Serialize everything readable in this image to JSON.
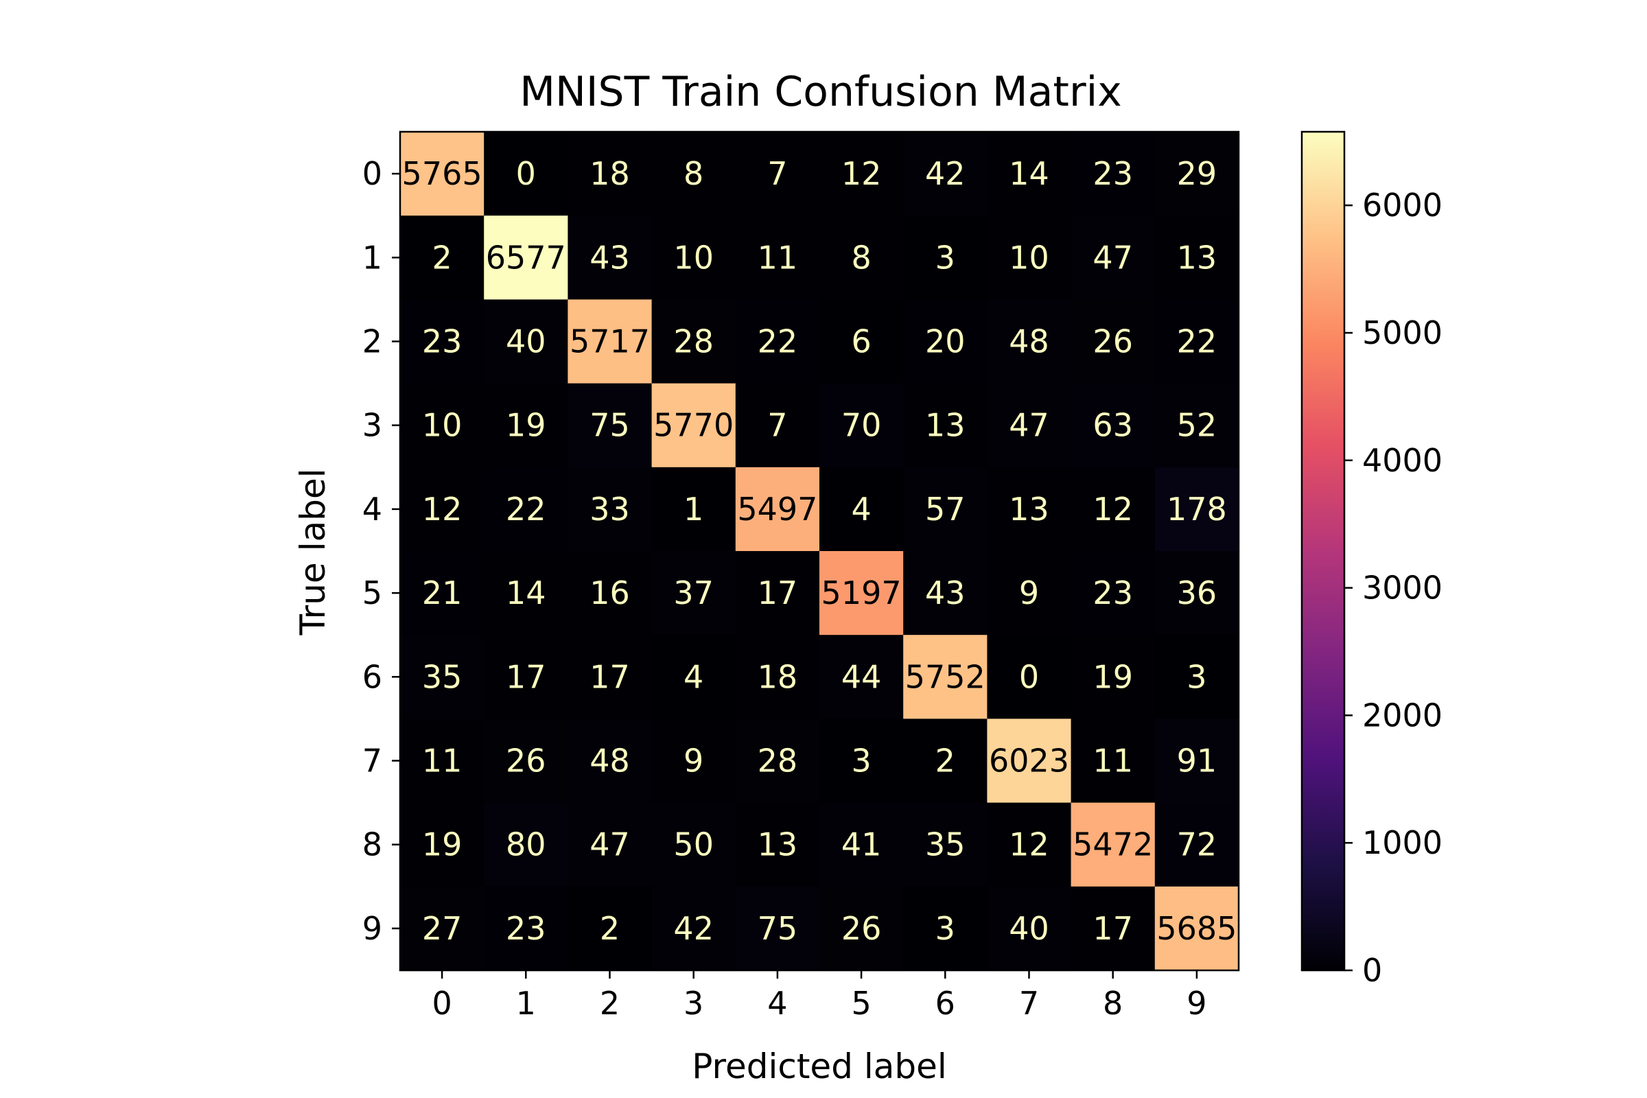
{
  "chart_data": {
    "type": "heatmap",
    "title": "MNIST Train Confusion Matrix",
    "xlabel": "Predicted label",
    "ylabel": "True label",
    "x_categories": [
      "0",
      "1",
      "2",
      "3",
      "4",
      "5",
      "6",
      "7",
      "8",
      "9"
    ],
    "y_categories": [
      "0",
      "1",
      "2",
      "3",
      "4",
      "5",
      "6",
      "7",
      "8",
      "9"
    ],
    "matrix": [
      [
        5765,
        0,
        18,
        8,
        7,
        12,
        42,
        14,
        23,
        29
      ],
      [
        2,
        6577,
        43,
        10,
        11,
        8,
        3,
        10,
        47,
        13
      ],
      [
        23,
        40,
        5717,
        28,
        22,
        6,
        20,
        48,
        26,
        22
      ],
      [
        10,
        19,
        75,
        5770,
        7,
        70,
        13,
        47,
        63,
        52
      ],
      [
        12,
        22,
        33,
        1,
        5497,
        4,
        57,
        13,
        12,
        178
      ],
      [
        21,
        14,
        16,
        37,
        17,
        5197,
        43,
        9,
        23,
        36
      ],
      [
        35,
        17,
        17,
        4,
        18,
        44,
        5752,
        0,
        19,
        3
      ],
      [
        11,
        26,
        48,
        9,
        28,
        3,
        2,
        6023,
        11,
        91
      ],
      [
        19,
        80,
        47,
        50,
        13,
        41,
        35,
        12,
        5472,
        72
      ],
      [
        27,
        23,
        2,
        42,
        75,
        26,
        3,
        40,
        17,
        5685
      ]
    ],
    "colormap": "magma",
    "color_range": [
      0,
      6577
    ],
    "colorbar": {
      "ticks": [
        0,
        1000,
        2000,
        3000,
        4000,
        5000,
        6000
      ],
      "tick_labels": [
        "0",
        "1000",
        "2000",
        "3000",
        "4000",
        "5000",
        "6000"
      ]
    },
    "text_colors": {
      "light": "#fcfdbf",
      "dark": "#000004"
    },
    "colorbar_placement": "right",
    "grid": false
  }
}
